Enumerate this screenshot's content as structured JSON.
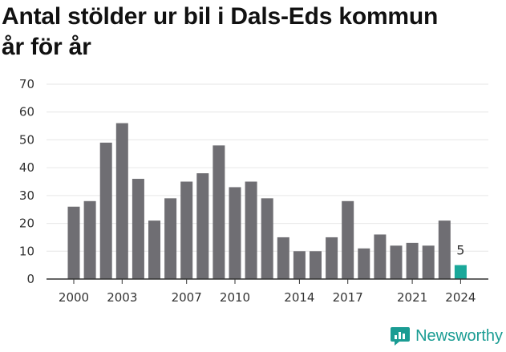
{
  "title_line1": "Antal stölder ur bil i Dals-Eds kommun",
  "title_line2": "år för år",
  "brand": "Newsworthy",
  "colors": {
    "bar": "#6f6e73",
    "highlight": "#1aa89a",
    "grid": "#e6e6e6",
    "axis": "#333333",
    "brand": "#1a9c93"
  },
  "chart_data": {
    "type": "bar",
    "title": "Antal stölder ur bil i Dals-Eds kommun år för år",
    "xlabel": "",
    "ylabel": "",
    "ylim": [
      0,
      70
    ],
    "yticks": [
      0,
      10,
      20,
      30,
      40,
      50,
      60,
      70
    ],
    "categories": [
      2000,
      2001,
      2002,
      2003,
      2004,
      2005,
      2006,
      2007,
      2008,
      2009,
      2010,
      2011,
      2012,
      2013,
      2014,
      2015,
      2016,
      2017,
      2018,
      2019,
      2020,
      2021,
      2022,
      2023,
      2024
    ],
    "values": [
      26,
      28,
      49,
      56,
      36,
      21,
      29,
      35,
      38,
      48,
      33,
      35,
      29,
      15,
      10,
      10,
      15,
      28,
      11,
      16,
      12,
      13,
      12,
      21,
      5
    ],
    "xtick_labels": [
      2000,
      2003,
      2007,
      2010,
      2014,
      2017,
      2021,
      2024
    ],
    "highlight": {
      "category": 2024,
      "value": 5,
      "label": "5"
    },
    "grid": true,
    "legend": "none"
  }
}
